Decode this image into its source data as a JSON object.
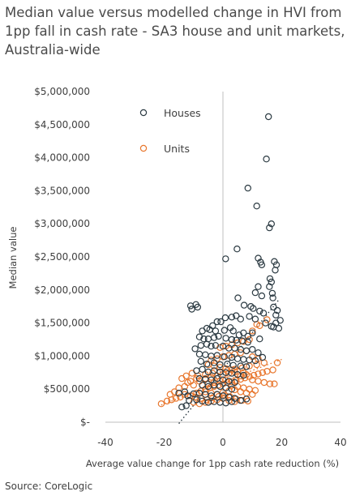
{
  "title": "Median value versus modelled change in HVI from 1pp fall in cash rate - SA3 house and unit markets, Australia-wide",
  "source": "Source: CoreLogic",
  "chart_data": {
    "type": "scatter",
    "xlabel": "Average value change for 1pp cash rate reduction (%)",
    "ylabel": "Median value",
    "xlim": [
      -40,
      40
    ],
    "ylim": [
      0,
      5000000
    ],
    "x_ticks": [
      -40,
      -20,
      0,
      20,
      40
    ],
    "x_tick_labels": [
      "-40",
      "-20",
      "0",
      "20",
      "40"
    ],
    "y_ticks": [
      0,
      500000,
      1000000,
      1500000,
      2000000,
      2500000,
      3000000,
      3500000,
      4000000,
      4500000,
      5000000
    ],
    "y_tick_labels": [
      "$-",
      "$500,000",
      "$1,000,000",
      "$1,500,000",
      "$2,000,000",
      "$2,500,000",
      "$3,000,000",
      "$3,500,000",
      "$4,000,000",
      "$4,500,000",
      "$5,000,000"
    ],
    "legend_position": "top-left",
    "series": [
      {
        "name": "Houses",
        "color": "#2b3a42",
        "marker": "hollow-circle",
        "trendline": true,
        "trend": [
          [
            -15,
            -20000
          ],
          [
            19,
            1850000
          ]
        ],
        "points": [
          [
            15.5,
            4620000
          ],
          [
            14.8,
            3980000
          ],
          [
            8.5,
            3540000
          ],
          [
            11.5,
            3270000
          ],
          [
            16.5,
            3000000
          ],
          [
            15.8,
            2940000
          ],
          [
            4.8,
            2620000
          ],
          [
            0.9,
            2470000
          ],
          [
            12.0,
            2480000
          ],
          [
            12.8,
            2420000
          ],
          [
            13.2,
            2380000
          ],
          [
            17.5,
            2430000
          ],
          [
            18.2,
            2380000
          ],
          [
            17.8,
            2300000
          ],
          [
            16.0,
            2170000
          ],
          [
            16.5,
            2120000
          ],
          [
            15.8,
            2050000
          ],
          [
            12.0,
            2050000
          ],
          [
            17.0,
            1880000
          ],
          [
            16.8,
            1950000
          ],
          [
            13.2,
            1910000
          ],
          [
            11.0,
            1960000
          ],
          [
            5.1,
            1880000
          ],
          [
            -11.0,
            1760000
          ],
          [
            -10.6,
            1710000
          ],
          [
            -8.6,
            1740000
          ],
          [
            -9.2,
            1780000
          ],
          [
            7.2,
            1770000
          ],
          [
            9.5,
            1750000
          ],
          [
            10.3,
            1720000
          ],
          [
            12.5,
            1680000
          ],
          [
            13.8,
            1650000
          ],
          [
            17.2,
            1740000
          ],
          [
            18.5,
            1690000
          ],
          [
            18.0,
            1620000
          ],
          [
            19.5,
            1540000
          ],
          [
            18.0,
            1500000
          ],
          [
            16.5,
            1450000
          ],
          [
            19.0,
            1420000
          ],
          [
            17.2,
            1440000
          ],
          [
            14.5,
            1500000
          ],
          [
            11.0,
            1560000
          ],
          [
            9.0,
            1600000
          ],
          [
            6.0,
            1560000
          ],
          [
            4.5,
            1610000
          ],
          [
            3.0,
            1590000
          ],
          [
            0.8,
            1580000
          ],
          [
            -0.7,
            1520000
          ],
          [
            -2.0,
            1520000
          ],
          [
            -3.5,
            1460000
          ],
          [
            -5.5,
            1420000
          ],
          [
            -4.5,
            1400000
          ],
          [
            -2.5,
            1380000
          ],
          [
            0.5,
            1390000
          ],
          [
            2.5,
            1430000
          ],
          [
            3.5,
            1380000
          ],
          [
            5.5,
            1320000
          ],
          [
            7.0,
            1350000
          ],
          [
            8.5,
            1300000
          ],
          [
            10.0,
            1350000
          ],
          [
            12.5,
            1260000
          ],
          [
            -7.0,
            1380000
          ],
          [
            -8.0,
            1290000
          ],
          [
            -6.5,
            1260000
          ],
          [
            -5.0,
            1260000
          ],
          [
            -3.0,
            1280000
          ],
          [
            -1.5,
            1300000
          ],
          [
            1.0,
            1270000
          ],
          [
            3.0,
            1250000
          ],
          [
            4.5,
            1240000
          ],
          [
            6.5,
            1230000
          ],
          [
            8.5,
            1210000
          ],
          [
            -9.5,
            1110000
          ],
          [
            -7.5,
            1160000
          ],
          [
            -5.5,
            1180000
          ],
          [
            -4.0,
            1150000
          ],
          [
            -2.5,
            1160000
          ],
          [
            0.0,
            1150000
          ],
          [
            2.0,
            1120000
          ],
          [
            4.0,
            1120000
          ],
          [
            6.0,
            1100000
          ],
          [
            8.0,
            1080000
          ],
          [
            10.0,
            1100000
          ],
          [
            12.0,
            1050000
          ],
          [
            -8.0,
            1030000
          ],
          [
            -6.0,
            1020000
          ],
          [
            -4.0,
            1000000
          ],
          [
            -2.0,
            1010000
          ],
          [
            0.5,
            990000
          ],
          [
            3.0,
            980000
          ],
          [
            5.0,
            960000
          ],
          [
            7.0,
            950000
          ],
          [
            9.0,
            940000
          ],
          [
            11.0,
            930000
          ],
          [
            13.5,
            980000
          ],
          [
            -7.5,
            920000
          ],
          [
            -5.5,
            880000
          ],
          [
            -3.0,
            900000
          ],
          [
            -1.0,
            870000
          ],
          [
            1.5,
            880000
          ],
          [
            3.5,
            860000
          ],
          [
            6.0,
            850000
          ],
          [
            8.0,
            840000
          ],
          [
            -9.0,
            780000
          ],
          [
            -7.0,
            800000
          ],
          [
            -5.0,
            760000
          ],
          [
            -3.0,
            780000
          ],
          [
            -1.0,
            760000
          ],
          [
            1.0,
            750000
          ],
          [
            3.0,
            740000
          ],
          [
            5.0,
            720000
          ],
          [
            7.0,
            710000
          ],
          [
            -8.0,
            660000
          ],
          [
            -6.0,
            650000
          ],
          [
            -4.0,
            640000
          ],
          [
            -2.0,
            660000
          ],
          [
            0.0,
            640000
          ],
          [
            2.0,
            620000
          ],
          [
            4.0,
            600000
          ],
          [
            -7.0,
            560000
          ],
          [
            -5.0,
            540000
          ],
          [
            -3.0,
            560000
          ],
          [
            -1.0,
            540000
          ],
          [
            1.0,
            520000
          ],
          [
            3.0,
            500000
          ],
          [
            -13.0,
            460000
          ],
          [
            -15.0,
            440000
          ],
          [
            -12.0,
            400000
          ],
          [
            -10.0,
            430000
          ],
          [
            -8.0,
            440000
          ],
          [
            -6.0,
            420000
          ],
          [
            -4.0,
            400000
          ],
          [
            -2.0,
            420000
          ],
          [
            0.0,
            400000
          ],
          [
            2.0,
            380000
          ],
          [
            4.0,
            360000
          ],
          [
            -11.5,
            330000
          ],
          [
            -9.0,
            340000
          ],
          [
            -7.0,
            320000
          ],
          [
            -5.0,
            300000
          ],
          [
            -3.0,
            310000
          ],
          [
            -1.0,
            300000
          ],
          [
            1.0,
            290000
          ],
          [
            3.0,
            310000
          ],
          [
            6.0,
            330000
          ],
          [
            8.0,
            350000
          ],
          [
            -12.5,
            250000
          ],
          [
            -14.0,
            230000
          ]
        ]
      },
      {
        "name": "Units",
        "color": "#e8772e",
        "marker": "hollow-circle",
        "trendline": true,
        "trend": [
          [
            -21,
            260000
          ],
          [
            20,
            950000
          ]
        ],
        "points": [
          [
            -21.0,
            280000
          ],
          [
            -19.0,
            320000
          ],
          [
            -17.5,
            340000
          ],
          [
            -16.0,
            360000
          ],
          [
            -14.5,
            380000
          ],
          [
            -13.0,
            420000
          ],
          [
            -11.0,
            400000
          ],
          [
            -9.0,
            440000
          ],
          [
            -7.5,
            470000
          ],
          [
            -6.0,
            500000
          ],
          [
            -4.5,
            520000
          ],
          [
            -3.0,
            540000
          ],
          [
            -1.5,
            560000
          ],
          [
            0.0,
            580000
          ],
          [
            1.5,
            600000
          ],
          [
            3.0,
            610000
          ],
          [
            4.5,
            630000
          ],
          [
            6.0,
            650000
          ],
          [
            7.5,
            670000
          ],
          [
            9.0,
            690000
          ],
          [
            10.5,
            710000
          ],
          [
            12.0,
            730000
          ],
          [
            13.5,
            750000
          ],
          [
            15.0,
            770000
          ],
          [
            17.0,
            790000
          ],
          [
            18.5,
            900000
          ],
          [
            14.0,
            900000
          ],
          [
            11.5,
            870000
          ],
          [
            9.0,
            850000
          ],
          [
            6.5,
            820000
          ],
          [
            4.0,
            800000
          ],
          [
            1.5,
            780000
          ],
          [
            -1.0,
            760000
          ],
          [
            -3.5,
            740000
          ],
          [
            -6.0,
            720000
          ],
          [
            -8.5,
            700000
          ],
          [
            -10.5,
            740000
          ],
          [
            -12.5,
            700000
          ],
          [
            -14.0,
            660000
          ],
          [
            -12.0,
            600000
          ],
          [
            -10.0,
            560000
          ],
          [
            -8.0,
            620000
          ],
          [
            -6.0,
            660000
          ],
          [
            -4.0,
            680000
          ],
          [
            -2.0,
            700000
          ],
          [
            0.0,
            720000
          ],
          [
            2.0,
            740000
          ],
          [
            4.0,
            760000
          ],
          [
            6.0,
            700000
          ],
          [
            8.0,
            720000
          ],
          [
            10.0,
            640000
          ],
          [
            12.0,
            620000
          ],
          [
            14.0,
            600000
          ],
          [
            16.0,
            580000
          ],
          [
            17.5,
            580000
          ],
          [
            15.0,
            1550000
          ],
          [
            12.5,
            1460000
          ],
          [
            11.5,
            1480000
          ],
          [
            10.0,
            1380000
          ],
          [
            9.0,
            1250000
          ],
          [
            7.0,
            1220000
          ],
          [
            5.0,
            1200000
          ],
          [
            3.0,
            1170000
          ],
          [
            1.0,
            1150000
          ],
          [
            -1.0,
            1130000
          ],
          [
            8.0,
            1080000
          ],
          [
            6.0,
            1050000
          ],
          [
            4.0,
            1030000
          ],
          [
            2.0,
            1010000
          ],
          [
            0.0,
            990000
          ],
          [
            -2.0,
            960000
          ],
          [
            -4.0,
            940000
          ],
          [
            10.0,
            990000
          ],
          [
            12.0,
            960000
          ],
          [
            -5.0,
            870000
          ],
          [
            -3.0,
            850000
          ],
          [
            -1.0,
            830000
          ],
          [
            1.0,
            810000
          ],
          [
            3.0,
            790000
          ],
          [
            5.0,
            770000
          ],
          [
            7.0,
            750000
          ],
          [
            -7.0,
            560000
          ],
          [
            -5.0,
            580000
          ],
          [
            -3.0,
            600000
          ],
          [
            -1.0,
            620000
          ],
          [
            1.0,
            640000
          ],
          [
            3.0,
            560000
          ],
          [
            5.0,
            540000
          ],
          [
            7.0,
            520000
          ],
          [
            9.0,
            500000
          ],
          [
            11.0,
            480000
          ],
          [
            -6.0,
            460000
          ],
          [
            -4.0,
            440000
          ],
          [
            -2.0,
            420000
          ],
          [
            0.0,
            450000
          ],
          [
            2.0,
            470000
          ],
          [
            4.0,
            490000
          ],
          [
            6.0,
            460000
          ],
          [
            8.0,
            440000
          ],
          [
            10.0,
            420000
          ],
          [
            -9.5,
            380000
          ],
          [
            -7.5,
            360000
          ],
          [
            -5.5,
            340000
          ],
          [
            -3.5,
            370000
          ],
          [
            -1.5,
            390000
          ],
          [
            0.5,
            410000
          ],
          [
            2.5,
            380000
          ],
          [
            4.5,
            350000
          ],
          [
            6.5,
            330000
          ],
          [
            8.5,
            320000
          ],
          [
            -10.0,
            300000
          ],
          [
            -8.0,
            280000
          ],
          [
            -6.0,
            300000
          ],
          [
            -4.0,
            320000
          ],
          [
            -2.0,
            340000
          ],
          [
            0.0,
            360000
          ],
          [
            2.0,
            330000
          ],
          [
            4.0,
            310000
          ],
          [
            -18.0,
            420000
          ],
          [
            -16.5,
            460000
          ],
          [
            -15.0,
            520000
          ],
          [
            -13.0,
            540000
          ],
          [
            -11.0,
            620000
          ],
          [
            -9.0,
            660000
          ]
        ]
      }
    ]
  }
}
